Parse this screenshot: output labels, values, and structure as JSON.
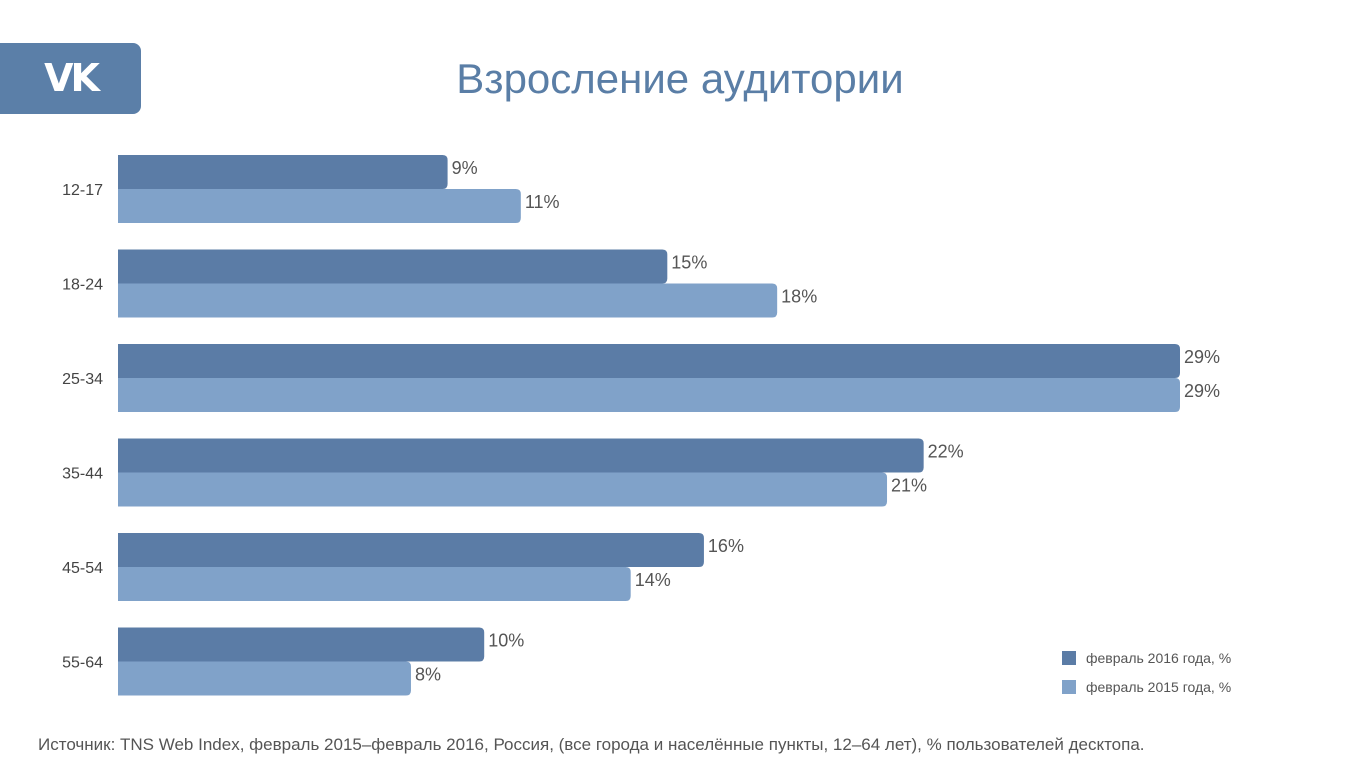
{
  "logo": {
    "text": "VK",
    "color": "#5b7fa8"
  },
  "title": "Взросление аудитории",
  "source": "Источник: TNS Web Index, февраль 2015–февраль 2016, Россия, (все города и населённые пункты, 12–64 лет), % пользователей десктопа.",
  "chart_data": {
    "type": "bar",
    "orientation": "horizontal",
    "categories": [
      "12-17",
      "18-24",
      "25-34",
      "35-44",
      "45-54",
      "55-64"
    ],
    "series": [
      {
        "name": "февраль 2016 года, %",
        "values": [
          9,
          15,
          29,
          22,
          16,
          10
        ],
        "labels": [
          "9%",
          "15%",
          "29%",
          "22%",
          "16%",
          "10%"
        ],
        "color": "#5b7ca6"
      },
      {
        "name": "февраль 2015 года, %",
        "values": [
          11,
          18,
          29,
          21,
          14,
          8
        ],
        "labels": [
          "11%",
          "18%",
          "29%",
          "21%",
          "14%",
          "8%"
        ],
        "color": "#80a2c9"
      }
    ],
    "xlim": [
      0,
      29
    ],
    "grid": false,
    "legend": "bottom-right"
  }
}
